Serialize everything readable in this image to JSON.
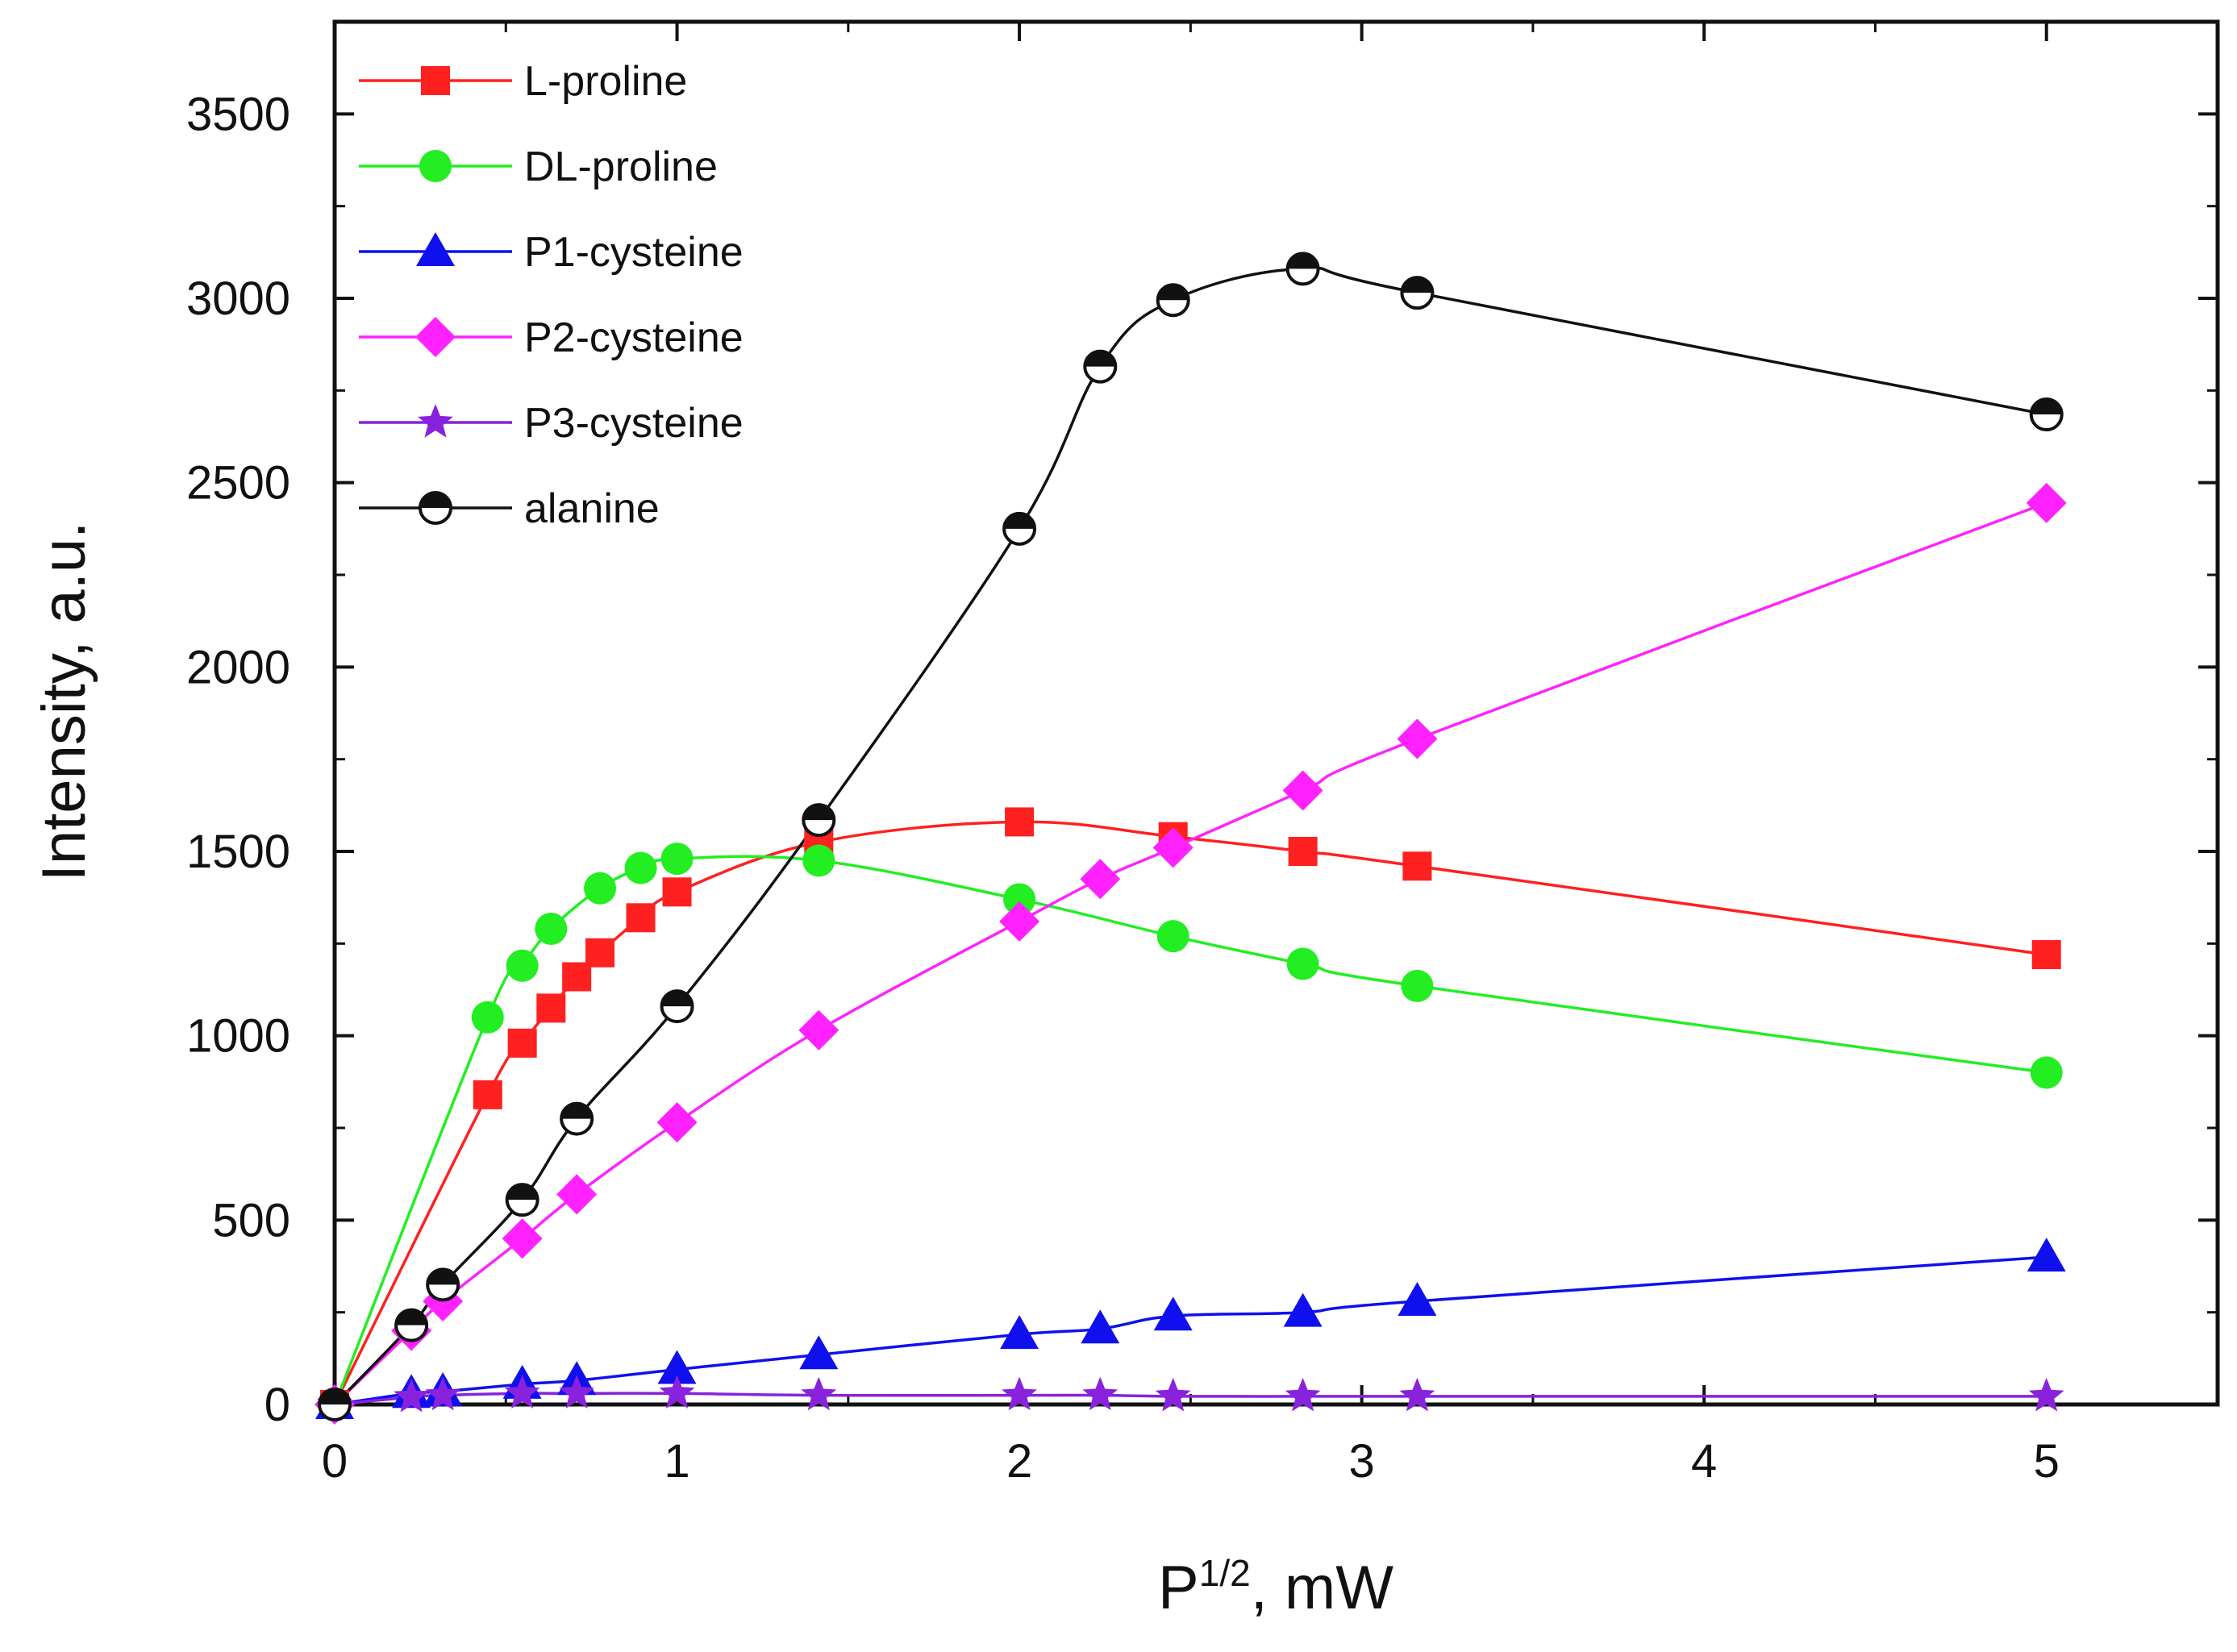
{
  "chart_data": {
    "type": "line",
    "title": "",
    "xlabel": {
      "base": "P",
      "superscript": "1/2",
      "suffix": ", mW"
    },
    "ylabel": "Intensity, a.u.",
    "xlim": [
      0,
      5.5
    ],
    "ylim": [
      0,
      3750
    ],
    "xticks": [
      0,
      1,
      2,
      3,
      4,
      5
    ],
    "xtick_labels": [
      "0",
      "1",
      "2",
      "3",
      "4",
      "5"
    ],
    "yticks": [
      0,
      500,
      1000,
      1500,
      2000,
      2500,
      3000,
      3500
    ],
    "ytick_labels": [
      "0",
      "500",
      "1000",
      "1500",
      "2000",
      "2500",
      "3000",
      "3500"
    ],
    "grid": false,
    "legend_position": "top-left",
    "series": [
      {
        "name": "L-proline",
        "color": "#ff2020",
        "marker": "square",
        "x": [
          0,
          0.447,
          0.548,
          0.632,
          0.707,
          0.775,
          0.894,
          1.0,
          1.414,
          2.0,
          2.449,
          2.828,
          3.162,
          5.0
        ],
        "y": [
          0,
          840,
          980,
          1075,
          1160,
          1225,
          1320,
          1390,
          1525,
          1580,
          1540,
          1500,
          1460,
          1220
        ]
      },
      {
        "name": "DL-proline",
        "color": "#22ee22",
        "marker": "circle",
        "x": [
          0,
          0.447,
          0.548,
          0.632,
          0.775,
          0.894,
          1.0,
          1.414,
          2.0,
          2.449,
          2.828,
          3.162,
          5.0
        ],
        "y": [
          0,
          1050,
          1190,
          1290,
          1400,
          1455,
          1480,
          1475,
          1370,
          1270,
          1195,
          1135,
          900
        ]
      },
      {
        "name": "P1-cysteine",
        "color": "#1010ee",
        "marker": "triangle",
        "x": [
          0,
          0.224,
          0.316,
          0.548,
          0.707,
          1.0,
          1.414,
          2.0,
          2.236,
          2.449,
          2.828,
          3.162,
          5.0
        ],
        "y": [
          0,
          30,
          35,
          55,
          65,
          95,
          135,
          190,
          205,
          240,
          250,
          280,
          400
        ]
      },
      {
        "name": "P2-cysteine",
        "color": "#ff22ff",
        "marker": "diamond",
        "x": [
          0,
          0.224,
          0.316,
          0.548,
          0.707,
          1.0,
          1.414,
          2.0,
          2.236,
          2.449,
          2.828,
          3.162,
          5.0
        ],
        "y": [
          0,
          200,
          280,
          450,
          570,
          765,
          1015,
          1310,
          1425,
          1510,
          1665,
          1805,
          2445
        ]
      },
      {
        "name": "P3-cysteine",
        "color": "#8822dd",
        "marker": "star",
        "x": [
          0,
          0.224,
          0.316,
          0.548,
          0.707,
          1.0,
          1.414,
          2.0,
          2.236,
          2.449,
          2.828,
          3.162,
          5.0
        ],
        "y": [
          0,
          20,
          25,
          30,
          30,
          30,
          25,
          25,
          25,
          22,
          22,
          22,
          22
        ]
      },
      {
        "name": "alanine",
        "color": "#111111",
        "marker": "half-circle",
        "x": [
          0,
          0.224,
          0.316,
          0.548,
          0.707,
          1.0,
          1.414,
          2.0,
          2.236,
          2.449,
          2.828,
          3.162,
          5.0
        ],
        "y": [
          0,
          215,
          325,
          555,
          775,
          1080,
          1585,
          2375,
          2815,
          2995,
          3080,
          3015,
          2685
        ]
      }
    ]
  }
}
